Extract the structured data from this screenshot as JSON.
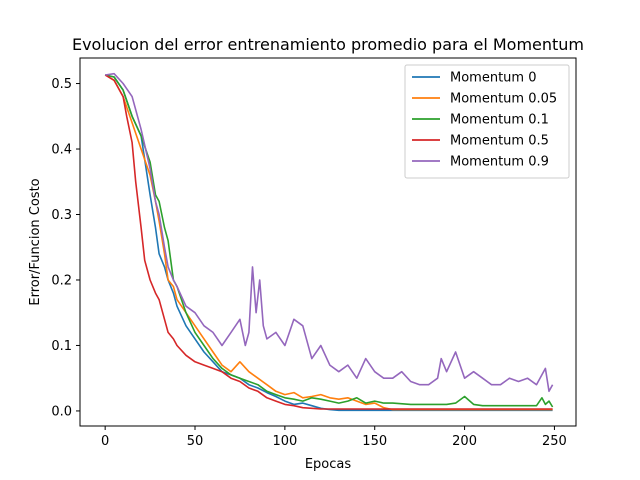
{
  "chart_data": {
    "type": "line",
    "title": "Evolucion del error entrenamiento promedio para el Momentum",
    "xlabel": "Epocas",
    "ylabel": "Error/Funcion Costo",
    "xlim": [
      -14,
      262
    ],
    "ylim": [
      -0.023,
      0.539
    ],
    "xticks": [
      0,
      50,
      100,
      150,
      200,
      250
    ],
    "yticks": [
      0.0,
      0.1,
      0.2,
      0.3,
      0.4,
      0.5
    ],
    "xtick_labels": [
      "0",
      "50",
      "100",
      "150",
      "200",
      "250"
    ],
    "ytick_labels": [
      "0.0",
      "0.1",
      "0.2",
      "0.3",
      "0.4",
      "0.5"
    ],
    "grid": false,
    "legend_position": "upper right",
    "series": [
      {
        "name": "Momentum 0",
        "color": "#1f77b4",
        "x": [
          0,
          5,
          10,
          15,
          20,
          25,
          28,
          30,
          33,
          35,
          38,
          40,
          45,
          50,
          55,
          60,
          65,
          70,
          75,
          80,
          85,
          90,
          95,
          100,
          105,
          110,
          115,
          120,
          125,
          130,
          140,
          150,
          160,
          180,
          200,
          220,
          249
        ],
        "y": [
          0.513,
          0.51,
          0.49,
          0.45,
          0.42,
          0.33,
          0.28,
          0.24,
          0.22,
          0.2,
          0.18,
          0.16,
          0.13,
          0.11,
          0.09,
          0.075,
          0.06,
          0.055,
          0.05,
          0.04,
          0.035,
          0.028,
          0.022,
          0.015,
          0.01,
          0.012,
          0.008,
          0.004,
          0.002,
          0.001,
          0.001,
          0.001,
          0.001,
          0.001,
          0.001,
          0.001,
          0.001
        ]
      },
      {
        "name": "Momentum 0.05",
        "color": "#ff7f0e",
        "x": [
          0,
          5,
          10,
          15,
          20,
          25,
          28,
          30,
          33,
          35,
          38,
          40,
          45,
          50,
          55,
          60,
          65,
          70,
          75,
          80,
          85,
          90,
          95,
          100,
          105,
          110,
          115,
          120,
          125,
          130,
          135,
          140,
          145,
          150,
          155,
          160,
          180,
          200,
          220,
          249
        ],
        "y": [
          0.513,
          0.505,
          0.48,
          0.44,
          0.4,
          0.36,
          0.32,
          0.29,
          0.24,
          0.2,
          0.19,
          0.17,
          0.15,
          0.13,
          0.11,
          0.09,
          0.07,
          0.06,
          0.075,
          0.06,
          0.05,
          0.04,
          0.03,
          0.025,
          0.028,
          0.02,
          0.022,
          0.025,
          0.02,
          0.018,
          0.02,
          0.015,
          0.01,
          0.012,
          0.005,
          0.002,
          0.002,
          0.002,
          0.002,
          0.002
        ]
      },
      {
        "name": "Momentum 0.1",
        "color": "#2ca02c",
        "x": [
          0,
          5,
          10,
          15,
          20,
          25,
          28,
          30,
          33,
          35,
          38,
          40,
          45,
          50,
          55,
          60,
          65,
          70,
          75,
          80,
          85,
          90,
          95,
          100,
          105,
          110,
          115,
          120,
          125,
          130,
          135,
          140,
          145,
          150,
          155,
          160,
          170,
          180,
          190,
          195,
          200,
          205,
          210,
          220,
          230,
          235,
          240,
          243,
          245,
          247,
          249
        ],
        "y": [
          0.513,
          0.51,
          0.49,
          0.45,
          0.42,
          0.38,
          0.33,
          0.32,
          0.28,
          0.26,
          0.2,
          0.19,
          0.15,
          0.12,
          0.1,
          0.08,
          0.065,
          0.055,
          0.05,
          0.045,
          0.04,
          0.03,
          0.025,
          0.02,
          0.018,
          0.015,
          0.02,
          0.018,
          0.015,
          0.012,
          0.015,
          0.02,
          0.012,
          0.015,
          0.012,
          0.012,
          0.01,
          0.01,
          0.01,
          0.012,
          0.022,
          0.01,
          0.008,
          0.008,
          0.008,
          0.008,
          0.008,
          0.02,
          0.01,
          0.015,
          0.006
        ]
      },
      {
        "name": "Momentum 0.5",
        "color": "#d62728",
        "x": [
          0,
          5,
          10,
          12,
          15,
          17,
          20,
          22,
          25,
          28,
          30,
          33,
          35,
          38,
          40,
          45,
          50,
          55,
          60,
          65,
          70,
          75,
          80,
          85,
          90,
          95,
          100,
          105,
          110,
          115,
          120,
          130,
          150,
          170,
          200,
          220,
          249
        ],
        "y": [
          0.513,
          0.505,
          0.48,
          0.45,
          0.41,
          0.35,
          0.28,
          0.23,
          0.2,
          0.18,
          0.17,
          0.14,
          0.12,
          0.11,
          0.1,
          0.085,
          0.075,
          0.07,
          0.065,
          0.06,
          0.05,
          0.045,
          0.035,
          0.03,
          0.02,
          0.015,
          0.01,
          0.008,
          0.005,
          0.004,
          0.003,
          0.003,
          0.003,
          0.003,
          0.003,
          0.003,
          0.003
        ]
      },
      {
        "name": "Momentum 0.9",
        "color": "#9467bd",
        "x": [
          0,
          5,
          10,
          15,
          20,
          25,
          28,
          30,
          33,
          35,
          38,
          40,
          45,
          50,
          55,
          60,
          65,
          70,
          75,
          78,
          80,
          82,
          84,
          86,
          88,
          90,
          95,
          100,
          105,
          110,
          115,
          120,
          125,
          130,
          135,
          140,
          145,
          150,
          155,
          160,
          165,
          170,
          175,
          180,
          185,
          187,
          190,
          195,
          200,
          205,
          210,
          215,
          220,
          225,
          230,
          235,
          240,
          245,
          247,
          249
        ],
        "y": [
          0.513,
          0.515,
          0.5,
          0.48,
          0.43,
          0.37,
          0.32,
          0.3,
          0.25,
          0.22,
          0.2,
          0.19,
          0.16,
          0.15,
          0.13,
          0.12,
          0.1,
          0.12,
          0.14,
          0.1,
          0.12,
          0.22,
          0.15,
          0.2,
          0.13,
          0.11,
          0.12,
          0.1,
          0.14,
          0.13,
          0.08,
          0.1,
          0.07,
          0.06,
          0.07,
          0.05,
          0.08,
          0.06,
          0.05,
          0.05,
          0.06,
          0.045,
          0.04,
          0.04,
          0.05,
          0.08,
          0.06,
          0.09,
          0.05,
          0.06,
          0.05,
          0.04,
          0.04,
          0.05,
          0.045,
          0.05,
          0.04,
          0.065,
          0.03,
          0.04
        ]
      }
    ]
  }
}
